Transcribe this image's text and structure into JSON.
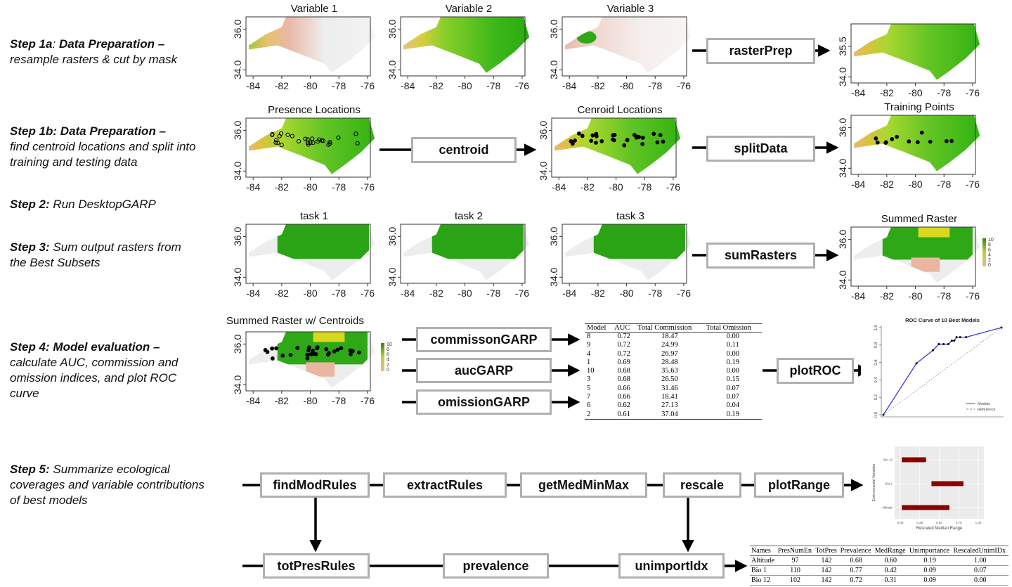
{
  "steps": {
    "s1a": {
      "label": "Step 1a",
      "sep": ":",
      "bold": " Data Preparation",
      "dash": " –",
      "desc": "resample rasters & cut by mask"
    },
    "s1b": {
      "label": "Step 1b:",
      "bold": " Data Preparation",
      "dash": " –",
      "desc": "find centroid locations and split into training and testing data"
    },
    "s2": {
      "label": "Step 2:",
      "desc": " Run DesktopGARP"
    },
    "s3": {
      "label": "Step 3:",
      "desc": " Sum output rasters from the Best Subsets"
    },
    "s4": {
      "label": "Step 4:",
      "bold": " Model evaluation",
      "dash": " –",
      "desc": "calculate AUC, commission and omission indices, and plot ROC curve"
    },
    "s5": {
      "label": "Step 5:",
      "desc": " Summarize ecological coverages and variable contributions of best models"
    }
  },
  "functions": {
    "rasterPrep": "rasterPrep",
    "centroid": "centroid",
    "splitData": "splitData",
    "sumRasters": "sumRasters",
    "commissonGARP": "commissonGARP",
    "aucGARP": "aucGARP",
    "omissionGARP": "omissionGARP",
    "plotROC": "plotROC",
    "findModRules": "findModRules",
    "extractRules": "extractRules",
    "getMedMinMax": "getMedMinMax",
    "rescale": "rescale",
    "plotRange": "plotRange",
    "totPresRules": "totPresRules",
    "prevalence": "prevalence",
    "unimportIdx": "unimportIdx"
  },
  "maps": [
    {
      "id": "var1",
      "title": "Variable 1",
      "xticks": [
        "-84",
        "-82",
        "-80",
        "-78",
        "-76"
      ],
      "yticks": [
        "34.0",
        "36.0"
      ],
      "style": "v1"
    },
    {
      "id": "var2",
      "title": "Variable 2",
      "xticks": [
        "-84",
        "-82",
        "-80",
        "-78",
        "-76"
      ],
      "yticks": [
        "34.0",
        "36.0"
      ],
      "style": "v2"
    },
    {
      "id": "var3",
      "title": "Variable 3",
      "xticks": [
        "-84",
        "-82",
        "-80",
        "-78",
        "-76"
      ],
      "yticks": [
        "34.0",
        "36.0"
      ],
      "style": "v3"
    },
    {
      "id": "prep",
      "title": "",
      "xticks": [
        "-84",
        "-82",
        "-80",
        "-78",
        "-76"
      ],
      "yticks": [
        "34.0",
        "35.5"
      ],
      "style": "prep"
    },
    {
      "id": "presence",
      "title": "Presence Locations",
      "xticks": [
        "-84",
        "-82",
        "-80",
        "-78",
        "-76"
      ],
      "yticks": [
        "34.0",
        "36.0"
      ],
      "style": "presence"
    },
    {
      "id": "centroids",
      "title": "Cenroid Locations",
      "xticks": [
        "-84",
        "-82",
        "-80",
        "-78",
        "-76"
      ],
      "yticks": [
        "34.0",
        "36.0"
      ],
      "style": "centroids"
    },
    {
      "id": "training",
      "title": "Training Points",
      "xticks": [
        "-84",
        "-82",
        "-80",
        "-78",
        "-76"
      ],
      "yticks": [
        "34.0",
        "36.0"
      ],
      "style": "training"
    },
    {
      "id": "task1",
      "title": "task 1",
      "xticks": [
        "-84",
        "-82",
        "-80",
        "-78",
        "-76"
      ],
      "yticks": [
        "34.0",
        "36.0"
      ],
      "style": "task"
    },
    {
      "id": "task2",
      "title": "task 2",
      "xticks": [
        "-84",
        "-82",
        "-80",
        "-78",
        "-76"
      ],
      "yticks": [
        "34.0",
        "36.0"
      ],
      "style": "task"
    },
    {
      "id": "task3",
      "title": "task 3",
      "xticks": [
        "-84",
        "-82",
        "-80",
        "-78",
        "-76"
      ],
      "yticks": [
        "34.0",
        "36.0"
      ],
      "style": "task"
    },
    {
      "id": "summed",
      "title": "Summed Raster",
      "xticks": [
        "-84",
        "-82",
        "-80",
        "-78",
        "-76"
      ],
      "yticks": [
        "34.0",
        "36.0"
      ],
      "style": "summed",
      "legend": [
        "10",
        "8",
        "6",
        "4",
        "2",
        "0"
      ]
    },
    {
      "id": "summedc",
      "title": "Summed Raster w/ Centroids",
      "xticks": [
        "-84",
        "-82",
        "-80",
        "-78",
        "-76"
      ],
      "yticks": [
        "34.0",
        "36.0"
      ],
      "style": "summedc",
      "legend": [
        "10",
        "8",
        "6",
        "4",
        "2",
        "0"
      ]
    }
  ],
  "model_table": {
    "headers": [
      "Model",
      "AUC",
      "Total Commission",
      "Total Omission"
    ],
    "rows": [
      [
        "8",
        "0.72",
        "18.47",
        "0.00"
      ],
      [
        "9",
        "0.72",
        "24.99",
        "0.11"
      ],
      [
        "4",
        "0.72",
        "26.97",
        "0.00"
      ],
      [
        "1",
        "0.69",
        "28.48",
        "0.19"
      ],
      [
        "10",
        "0.68",
        "35.63",
        "0.00"
      ],
      [
        "3",
        "0.68",
        "26.50",
        "0.15"
      ],
      [
        "5",
        "0.66",
        "31.46",
        "0.07"
      ],
      [
        "7",
        "0.66",
        "18.41",
        "0.07"
      ],
      [
        "6",
        "0.62",
        "27.13",
        "0.04"
      ],
      [
        "2",
        "0.61",
        "37.04",
        "0.19"
      ]
    ]
  },
  "variable_table": {
    "headers": [
      "Names",
      "PresNumEn",
      "TotPres",
      "Prevalence",
      "MedRange",
      "Unimportance",
      "RescaledUnimIDx"
    ],
    "rows": [
      [
        "Altitude",
        "97",
        "142",
        "0.68",
        "0.60",
        "0.19",
        "1.00"
      ],
      [
        "Bio 1",
        "110",
        "142",
        "0.77",
        "0.42",
        "0.09",
        "0.07"
      ],
      [
        "Bio 12",
        "102",
        "142",
        "0.72",
        "0.31",
        "0.09",
        "0.00"
      ]
    ]
  },
  "roc": {
    "type": "line",
    "title": "ROC Curve of 10 Best Models",
    "xlim": [
      0,
      1
    ],
    "ylim": [
      0,
      1
    ],
    "yticks": [
      "0.0",
      "0.2",
      "0.4",
      "0.6",
      "0.8",
      "1.0"
    ],
    "series": [
      {
        "name": "Models",
        "color": "#3b3bd0",
        "x": [
          0,
          0.28,
          0.42,
          0.47,
          0.51,
          0.55,
          0.58,
          0.6,
          0.62,
          0.65,
          0.7,
          1.0
        ],
        "y": [
          0,
          0.59,
          0.74,
          0.81,
          0.81,
          0.81,
          0.85,
          0.85,
          0.89,
          0.89,
          0.89,
          1.0
        ]
      },
      {
        "name": "Reference",
        "color": "#888888",
        "x": [
          0,
          1
        ],
        "y": [
          0,
          1
        ]
      }
    ]
  },
  "range_plot": {
    "type": "bar",
    "xlabel": "Rescaled Median Range",
    "ylabel": "Environmental Variables",
    "xlim": [
      0,
      1
    ],
    "xticks": [
      "0.00",
      "0.25",
      "0.50",
      "0.75",
      "1.00"
    ],
    "categories": [
      "Bio 12",
      "Bio 1",
      "Altitude"
    ],
    "ranges": [
      [
        0.02,
        0.33
      ],
      [
        0.4,
        0.81
      ],
      [
        0.02,
        0.63
      ]
    ],
    "color": "#8b0000"
  }
}
